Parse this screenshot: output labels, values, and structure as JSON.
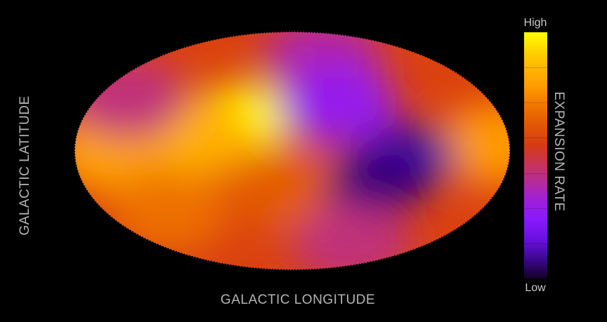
{
  "chart_data": {
    "type": "heatmap",
    "projection": "mollweide",
    "title": "",
    "xlabel": "GALACTIC LONGITUDE",
    "ylabel": "GALACTIC LATITUDE",
    "colorbar": {
      "label": "EXPANSION RATE",
      "max_label": "High",
      "min_label": "Low",
      "colors": [
        "#140028",
        "#3c0890",
        "#6a10e0",
        "#8a18ff",
        "#a020d8",
        "#c0307a",
        "#d63a14",
        "#e86400",
        "#ff9a00",
        "#ffc800",
        "#ffff00"
      ]
    },
    "value_range": [
      0,
      1
    ],
    "base_level": 0.62,
    "features": [
      {
        "lon": -40,
        "lat": 25,
        "level": 1.0,
        "kind": "peak"
      },
      {
        "lon": -80,
        "lat": 10,
        "level": 0.85,
        "kind": "high"
      },
      {
        "lon": -150,
        "lat": 0,
        "level": 0.82,
        "kind": "high"
      },
      {
        "lon": -110,
        "lat": -45,
        "level": 0.72,
        "kind": "high"
      },
      {
        "lon": 170,
        "lat": 5,
        "level": 0.8,
        "kind": "high"
      },
      {
        "lon": 0,
        "lat": -30,
        "level": 0.68,
        "kind": "moderate"
      },
      {
        "lon": -145,
        "lat": 40,
        "level": 0.5,
        "kind": "low"
      },
      {
        "lon": 30,
        "lat": 70,
        "level": 0.45,
        "kind": "low"
      },
      {
        "lon": 40,
        "lat": 35,
        "level": 0.35,
        "kind": "low"
      },
      {
        "lon": 95,
        "lat": -5,
        "level": 0.12,
        "kind": "minimum"
      },
      {
        "lon": 70,
        "lat": -25,
        "level": 0.08,
        "kind": "minimum"
      },
      {
        "lon": 60,
        "lat": -70,
        "level": 0.5,
        "kind": "low"
      }
    ]
  }
}
